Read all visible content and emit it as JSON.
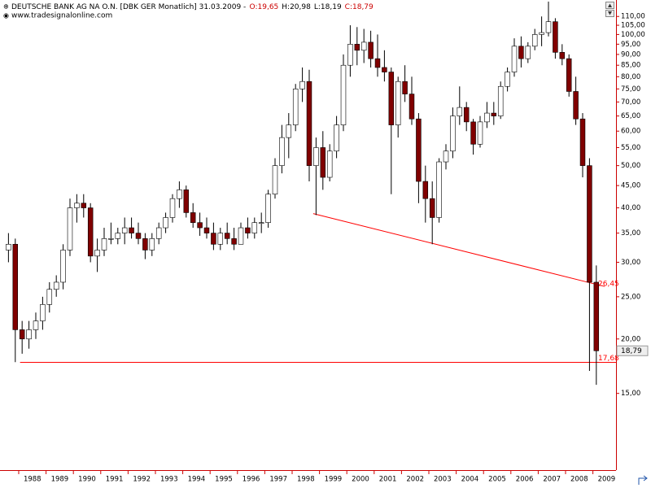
{
  "chart_data": {
    "type": "candlestick",
    "title": "DEUTSCHE BANK AG NA O.N. [DBK GER  Monatlich] 31.03.2009 -",
    "ohlc_labels": [
      {
        "text": "O:19,65",
        "color": "#cc0000"
      },
      {
        "text": "H:20,98",
        "color": "#000000"
      },
      {
        "text": "L:18,19",
        "color": "#000000"
      },
      {
        "text": "C:18,79",
        "color": "#cc0000"
      }
    ],
    "subtitle": "www.tradesignalonline.com",
    "log_scale": true,
    "up_color": "#ffffff",
    "down_color": "#800000",
    "x": [
      1987.5,
      1987.75,
      1988,
      1988.25,
      1988.5,
      1988.75,
      1989,
      1989.25,
      1989.5,
      1989.75,
      1990,
      1990.25,
      1990.5,
      1990.75,
      1991,
      1991.25,
      1991.5,
      1991.75,
      1992,
      1992.25,
      1992.5,
      1992.75,
      1993,
      1993.25,
      1993.5,
      1993.75,
      1994,
      1994.25,
      1994.5,
      1994.75,
      1995,
      1995.25,
      1995.5,
      1995.75,
      1996,
      1996.25,
      1996.5,
      1996.75,
      1997,
      1997.25,
      1997.5,
      1997.75,
      1998,
      1998.25,
      1998.5,
      1998.75,
      1999,
      1999.25,
      1999.5,
      1999.75,
      2000,
      2000.25,
      2000.5,
      2000.75,
      2001,
      2001.25,
      2001.5,
      2001.75,
      2002,
      2002.25,
      2002.5,
      2002.75,
      2003,
      2003.25,
      2003.5,
      2003.75,
      2004,
      2004.25,
      2004.5,
      2004.75,
      2005,
      2005.25,
      2005.5,
      2005.75,
      2006,
      2006.25,
      2006.5,
      2006.75,
      2007,
      2007.25,
      2007.5,
      2007.75,
      2008,
      2008.25,
      2008.5,
      2008.75,
      2009
    ],
    "open": [
      32,
      33,
      21,
      20,
      21,
      22,
      24,
      26,
      27,
      32,
      40,
      41,
      40,
      31,
      32,
      34,
      34,
      35,
      36,
      35,
      34,
      32,
      34,
      36,
      38,
      42,
      44,
      39,
      37,
      36,
      35,
      33,
      35,
      34,
      33,
      36,
      35,
      37,
      37,
      43,
      50,
      58,
      62,
      75,
      78,
      50,
      55,
      47,
      54,
      62,
      85,
      95,
      92,
      96,
      88,
      84,
      82,
      62,
      78,
      73,
      64,
      46,
      42,
      38,
      51,
      54,
      65,
      68,
      63,
      56,
      63,
      66,
      65,
      76,
      82,
      94,
      88,
      94,
      100,
      101,
      107,
      91,
      88,
      74,
      64,
      50,
      27
    ],
    "high": [
      35,
      34,
      22,
      22,
      23,
      25,
      27,
      28,
      33,
      42,
      43,
      43,
      41,
      34,
      36,
      37,
      36,
      38,
      38,
      37,
      35,
      35,
      37,
      39,
      43,
      46,
      45,
      41,
      39,
      38,
      37,
      36,
      37,
      36,
      37,
      38,
      38,
      39,
      44,
      52,
      62,
      66,
      77,
      84,
      83,
      58,
      60,
      56,
      65,
      90,
      105,
      104,
      103,
      102,
      100,
      92,
      84,
      80,
      85,
      80,
      66,
      50,
      46,
      52,
      56,
      68,
      76,
      70,
      64,
      65,
      70,
      70,
      78,
      84,
      98,
      99,
      96,
      103,
      110,
      119,
      109,
      95,
      90,
      80,
      66,
      52,
      29.5
    ],
    "low": [
      30,
      17.7,
      18.5,
      19,
      20,
      21,
      23,
      25,
      26,
      31,
      37,
      38,
      30,
      28.5,
      31,
      33,
      33,
      33,
      34,
      33,
      30.5,
      31,
      33,
      35,
      37,
      40,
      38,
      36,
      34.5,
      34,
      32,
      32,
      33,
      32,
      33,
      34,
      34,
      35,
      36,
      42,
      48,
      52,
      60,
      70,
      46,
      38.5,
      44,
      46,
      52,
      60,
      80,
      85,
      86,
      84,
      80,
      78,
      43,
      58,
      70,
      62,
      41,
      37,
      33,
      37,
      49,
      52,
      62,
      60,
      53,
      55,
      61,
      62,
      64,
      74,
      80,
      84,
      86,
      92,
      94,
      99,
      88,
      85,
      72,
      62,
      47,
      16.9,
      15.7
    ],
    "close": [
      33,
      21,
      20,
      21,
      22,
      24,
      26,
      27,
      32,
      40,
      41,
      40,
      31,
      32,
      34,
      34,
      35,
      36,
      35,
      34,
      32,
      34,
      36,
      38,
      42,
      44,
      39,
      37,
      36,
      35,
      33,
      35,
      34,
      33,
      36,
      35,
      37,
      37,
      43,
      50,
      58,
      62,
      75,
      78,
      50,
      55,
      47,
      54,
      62,
      85,
      95,
      92,
      96,
      88,
      84,
      82,
      62,
      78,
      73,
      64,
      46,
      42,
      38,
      51,
      54,
      65,
      68,
      63,
      56,
      63,
      66,
      65,
      76,
      82,
      94,
      88,
      94,
      100,
      101,
      107,
      91,
      88,
      74,
      64,
      50,
      27,
      18.79
    ],
    "xlim": [
      1987.316,
      2009.845
    ],
    "ylim": [
      10,
      120
    ],
    "xticks": [
      1988,
      1989,
      1990,
      1991,
      1992,
      1993,
      1994,
      1995,
      1996,
      1997,
      1998,
      1999,
      2000,
      2001,
      2002,
      2003,
      2004,
      2005,
      2006,
      2007,
      2008,
      2009
    ],
    "yticks": [
      {
        "value": 15,
        "label": "15,00"
      },
      {
        "value": 20,
        "label": "20,00"
      },
      {
        "value": 25,
        "label": "25,00"
      },
      {
        "value": 30,
        "label": "30,00"
      },
      {
        "value": 35,
        "label": "35,00"
      },
      {
        "value": 40,
        "label": "40,00"
      },
      {
        "value": 45,
        "label": "45,00"
      },
      {
        "value": 50,
        "label": "50,00"
      },
      {
        "value": 55,
        "label": "55,00"
      },
      {
        "value": 60,
        "label": "60,00"
      },
      {
        "value": 65,
        "label": "65,00"
      },
      {
        "value": 70,
        "label": "70,00"
      },
      {
        "value": 75,
        "label": "75,00"
      },
      {
        "value": 80,
        "label": "80,00"
      },
      {
        "value": 85,
        "label": "85,00"
      },
      {
        "value": 90,
        "label": "90,00"
      },
      {
        "value": 95,
        "label": "95,00"
      },
      {
        "value": 100,
        "label": "100,00"
      },
      {
        "value": 105,
        "label": "105,00"
      },
      {
        "value": 110,
        "label": "110,00"
      }
    ],
    "trendline": {
      "x": [
        1998.77,
        2009.43
      ],
      "y": [
        38.8,
        26.4
      ],
      "color": "#ff0000",
      "label_value": 26.45,
      "label": "26,45"
    },
    "support_line": {
      "x_start": 1988.05,
      "value": 17.68,
      "label": "17,68",
      "color": "#ff0000"
    },
    "last_price": {
      "value": 18.79,
      "label": "18,79"
    }
  }
}
